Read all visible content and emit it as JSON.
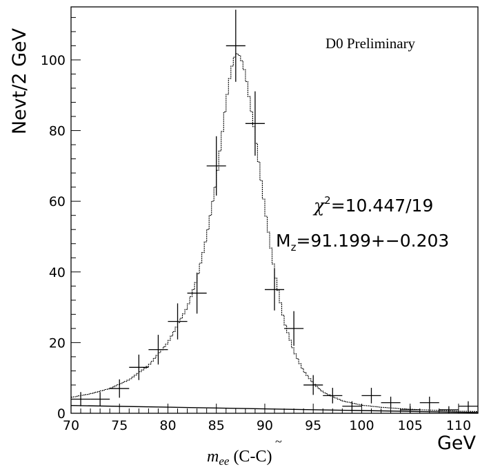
{
  "chart_data": {
    "type": "scatter",
    "experiment_label": "D0 Preliminary",
    "ylabel": "Nevt/2 GeV",
    "xunit": "GeV",
    "xlabel": {
      "symbol": "m",
      "subscript": "ee",
      "suffix": "(C-",
      "tilde": "C",
      "close": ")"
    },
    "fit_info": {
      "chi2_symbol": "χ",
      "chi2_power": "2",
      "chi2_value": "=10.447/19",
      "mz_symbol": "M",
      "mz_sub": "z",
      "mz_value": "=91.199+−0.203"
    },
    "xlim": [
      70,
      112
    ],
    "ylim": [
      0,
      115
    ],
    "xticks": [
      70,
      75,
      80,
      85,
      90,
      95,
      100,
      105,
      110
    ],
    "yticks": [
      0,
      20,
      40,
      60,
      80,
      100
    ],
    "bin_width": 2,
    "series": [
      {
        "values_x": [
          71,
          73,
          75,
          77,
          79,
          81,
          83,
          85,
          87,
          89,
          91,
          93,
          95,
          97,
          99,
          101,
          103,
          105,
          107,
          109,
          111
        ],
        "values_y": [
          4,
          4,
          7,
          13,
          18,
          26,
          34,
          70,
          104,
          82,
          35,
          24,
          8,
          5,
          2,
          5,
          3,
          1,
          3,
          1,
          2
        ],
        "errors": [
          2,
          2,
          2.6,
          3.6,
          4.2,
          5.1,
          5.8,
          8.4,
          10.2,
          9.1,
          5.9,
          4.9,
          2.8,
          2.2,
          1.4,
          2.2,
          1.7,
          1,
          1.7,
          1,
          1.4
        ]
      }
    ],
    "fit_curve": {
      "x": [
        70,
        72,
        74,
        76,
        78,
        80,
        82,
        83,
        84,
        85,
        86,
        86.5,
        87,
        87.5,
        88,
        89,
        90,
        91,
        92,
        93,
        94,
        95,
        96,
        98,
        100,
        102,
        104,
        106,
        108,
        110,
        112
      ],
      "y": [
        4.5,
        5.5,
        7,
        9.5,
        13.5,
        20,
        30,
        38,
        50,
        66,
        88,
        97,
        102,
        101,
        96,
        79,
        58,
        40,
        26,
        17.5,
        12,
        8.5,
        6,
        3.5,
        2.3,
        1.7,
        1.3,
        1,
        0.8,
        0.6,
        0.5
      ]
    },
    "background_line": {
      "x": [
        70,
        112
      ],
      "y": [
        2.2,
        0.2
      ]
    }
  }
}
